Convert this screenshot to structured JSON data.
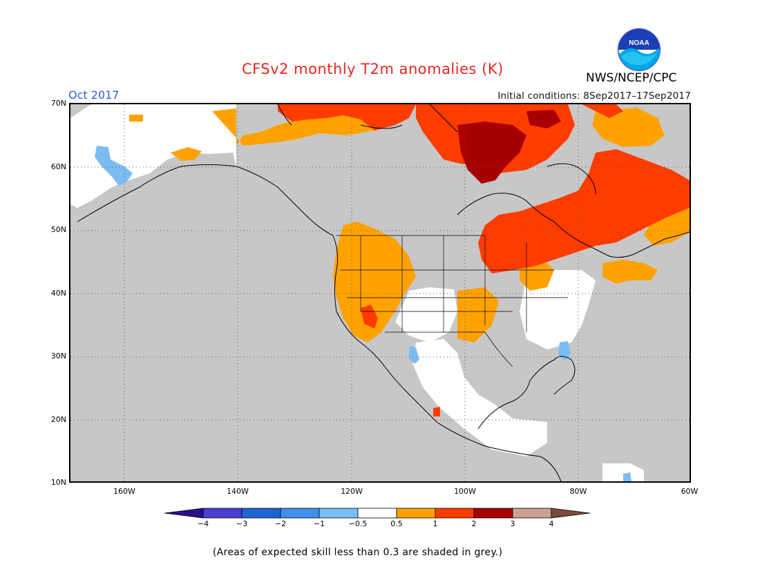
{
  "header": {
    "title": "CFSv2 monthly T2m anomalies (K)",
    "valid_month": "Oct 2017",
    "initial_conditions": "Initial conditions: 8Sep2017–17Sep2017",
    "agency": "NWS/NCEP/CPC",
    "logo_text": "NOAA"
  },
  "map": {
    "lat_labels": [
      "70N",
      "60N",
      "50N",
      "40N",
      "30N",
      "20N",
      "10N"
    ],
    "lon_labels": [
      "160W",
      "140W",
      "120W",
      "100W",
      "80W",
      "60W"
    ],
    "background": "#c7c7c7",
    "grid": "dotted"
  },
  "legend": {
    "colors": [
      "#2a0f8c",
      "#4a3fd0",
      "#1e64d2",
      "#3f90ea",
      "#7cbcf4",
      "#ffffff",
      "#ffa200",
      "#ff3c00",
      "#a80000",
      "#c9a292",
      "#7a4a3a"
    ],
    "labels": [
      "−4",
      "−3",
      "−2",
      "−1",
      "−0.5",
      "0.5",
      "1",
      "2",
      "3",
      "4"
    ]
  },
  "footnote": "(Areas of expected skill less than 0.3 are shaded in grey.)"
}
